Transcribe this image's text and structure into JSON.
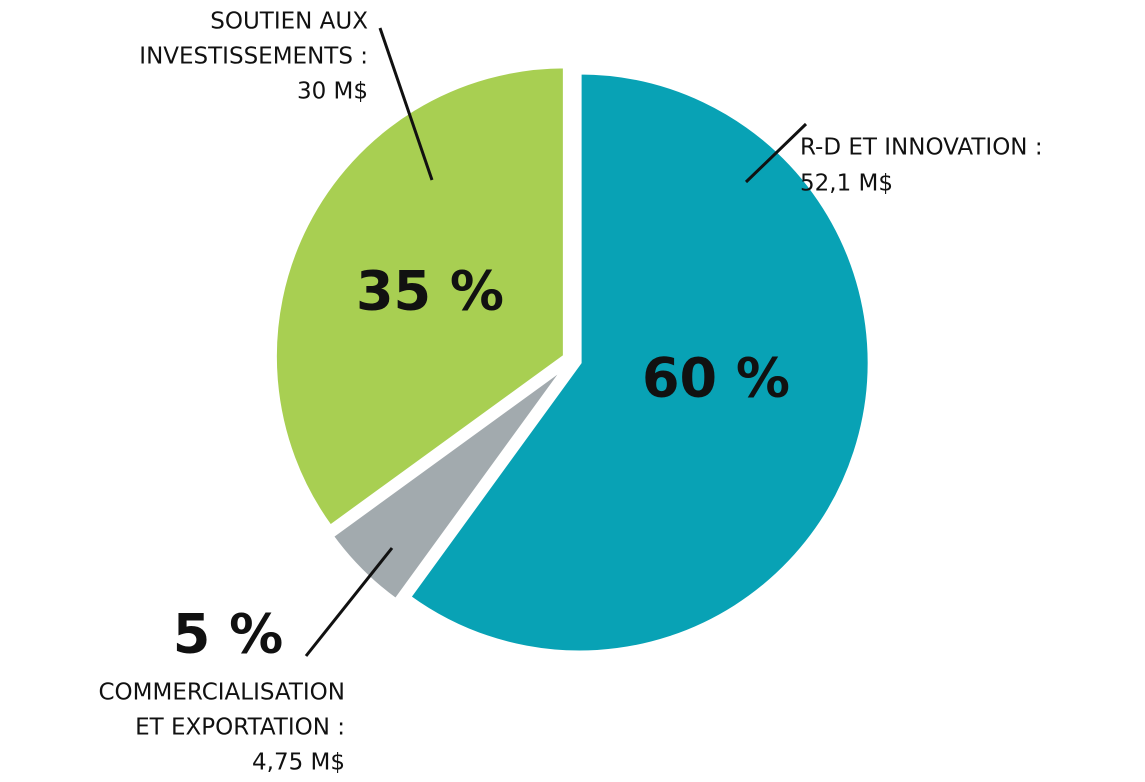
{
  "chart_data": {
    "type": "pie",
    "categories": [
      [
        "R-D ET INNOVATION :"
      ],
      [
        "COMMERCIALISATION",
        "ET EXPORTATION :"
      ],
      [
        "SOUTIEN AUX",
        "INVESTISSEMENTS :"
      ]
    ],
    "amount_labels": [
      "52,1 M$",
      "4,75 M$",
      "30 M$"
    ],
    "values": [
      60,
      5,
      35
    ],
    "value_labels": [
      "60 %",
      "5 %",
      "35 %"
    ],
    "colors": [
      "#08a2b5",
      "#a2aaae",
      "#a8cf52"
    ]
  }
}
